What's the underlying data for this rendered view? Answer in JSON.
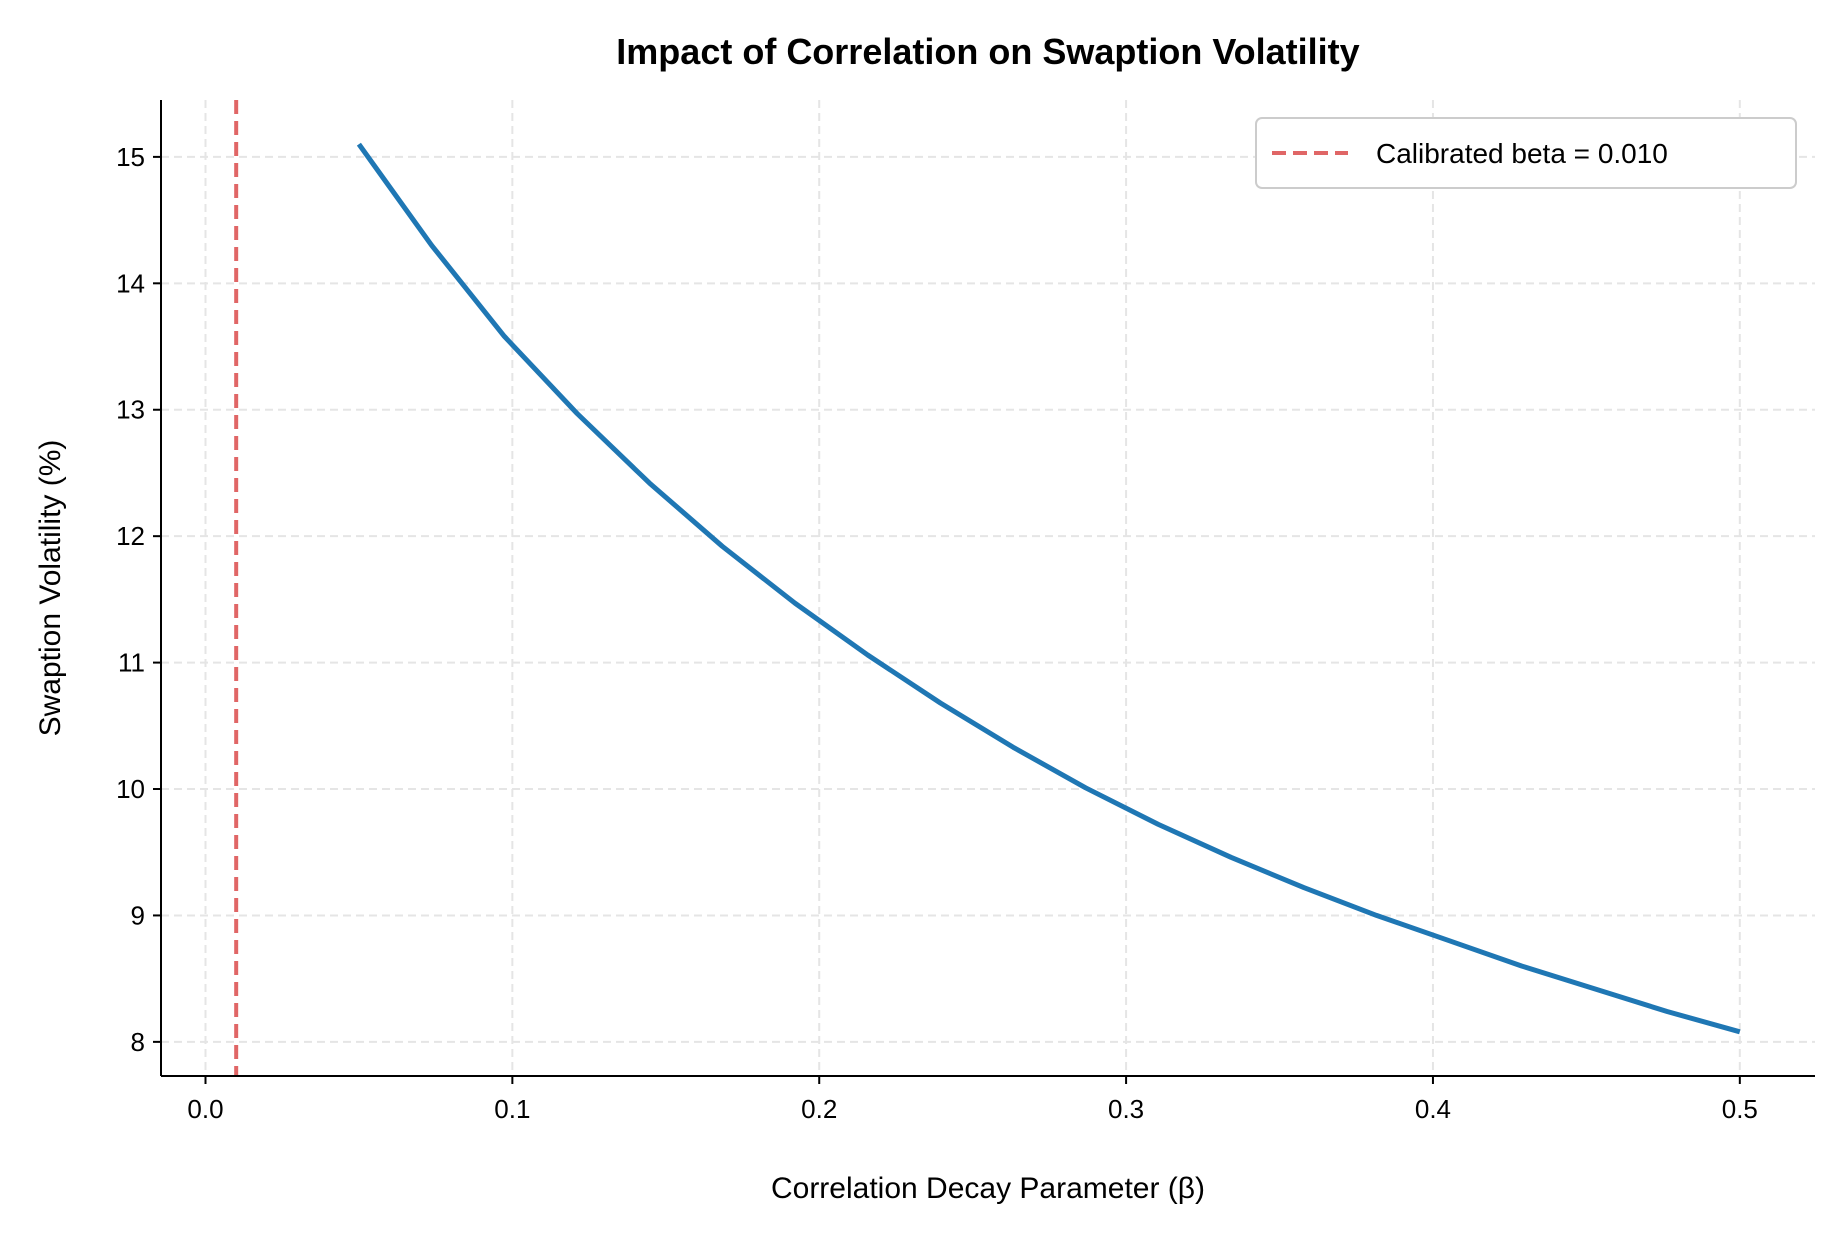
{
  "chart_data": {
    "type": "line",
    "title": "Impact of Correlation on Swaption Volatility",
    "xlabel": "Correlation Decay Parameter (β)",
    "ylabel": "Swaption Volatility (%)",
    "xlim": [
      -0.0145,
      0.5245
    ],
    "ylim": [
      7.73,
      15.45
    ],
    "xticks": [
      0.0,
      0.1,
      0.2,
      0.3,
      0.4,
      0.5
    ],
    "xtick_labels": [
      "0.0",
      "0.1",
      "0.2",
      "0.3",
      "0.4",
      "0.5"
    ],
    "yticks": [
      8,
      9,
      10,
      11,
      12,
      13,
      14,
      15
    ],
    "ytick_labels": [
      "8",
      "9",
      "10",
      "11",
      "12",
      "13",
      "14",
      "15"
    ],
    "grid": true,
    "legend_placement": "top-right",
    "series": [
      {
        "color": "#1f77b4",
        "x": [
          0.05,
          0.0737,
          0.0974,
          0.1211,
          0.1447,
          0.1684,
          0.1921,
          0.2158,
          0.2395,
          0.2632,
          0.2868,
          0.3105,
          0.3342,
          0.3579,
          0.3816,
          0.4053,
          0.4289,
          0.4526,
          0.4763,
          0.5
        ],
        "y": [
          15.1,
          14.3,
          13.58,
          12.97,
          12.42,
          11.92,
          11.47,
          11.06,
          10.68,
          10.33,
          10.01,
          9.72,
          9.46,
          9.22,
          9.0,
          8.8,
          8.6,
          8.42,
          8.24,
          8.08
        ]
      }
    ],
    "reference_lines": [
      {
        "orientation": "vertical",
        "x": 0.01,
        "style": "dashed",
        "color": "#e06666",
        "name": "Calibrated beta = 0.010"
      }
    ]
  }
}
